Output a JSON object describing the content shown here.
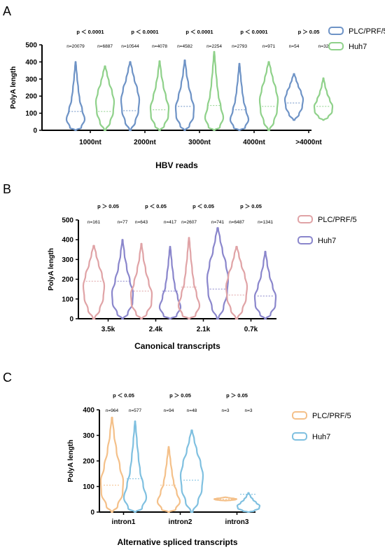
{
  "chart_data": [
    {
      "panel_label": "A",
      "type": "violin",
      "xlabel": "HBV  reads",
      "ylabel": "PolyA length",
      "ylim": [
        0,
        500
      ],
      "yticks": [
        0,
        100,
        200,
        300,
        400,
        500
      ],
      "colors": [
        "#6e93c6",
        "#8fd18a"
      ],
      "legend_position": "top-right",
      "series": [
        {
          "name": "PLC/PRF/5",
          "max": [
            400,
            400,
            410,
            390,
            330
          ],
          "median": [
            110,
            115,
            140,
            120,
            160
          ],
          "min": [
            0,
            0,
            0,
            0,
            60
          ]
        },
        {
          "name": "Huh7",
          "max": [
            375,
            405,
            460,
            400,
            305
          ],
          "median": [
            110,
            120,
            145,
            140,
            140
          ],
          "min": [
            0,
            0,
            0,
            0,
            60
          ]
        }
      ],
      "groups": [
        {
          "category": "1000nt",
          "p": "p ＜ 0.0001",
          "n": [
            "n=20079",
            "n=6887"
          ]
        },
        {
          "category": "2000nt",
          "p": "p ＜ 0.0001",
          "n": [
            "n=10544",
            "n=4078"
          ]
        },
        {
          "category": "3000nt",
          "p": "p ＜ 0.0001",
          "n": [
            "n=4582",
            "n=2254"
          ]
        },
        {
          "category": "4000nt",
          "p": "p ＜ 0.0001",
          "n": [
            "n=2793",
            "n=971"
          ]
        },
        {
          "category": ">4000nt",
          "p": "p ＞ 0.05",
          "n": [
            "n=54",
            "n=32"
          ]
        }
      ]
    },
    {
      "panel_label": "B",
      "type": "violin",
      "xlabel": "Canonical transcripts",
      "ylabel": "PolyA length",
      "ylim": [
        0,
        500
      ],
      "yticks": [
        0,
        100,
        200,
        300,
        400,
        500
      ],
      "colors": [
        "#e0a3a6",
        "#8a86cc"
      ],
      "legend_position": "top-right",
      "series": [
        {
          "name": "PLC/PRF/5",
          "max": [
            370,
            380,
            410,
            365
          ],
          "median": [
            190,
            140,
            160,
            120
          ],
          "min": [
            0,
            0,
            0,
            0
          ]
        },
        {
          "name": "Huh7",
          "max": [
            400,
            365,
            460,
            340
          ],
          "median": [
            190,
            140,
            150,
            115
          ],
          "min": [
            0,
            0,
            0,
            0
          ]
        }
      ],
      "groups": [
        {
          "category": "3.5k",
          "p": "p ＞ 0.05",
          "n": [
            "n=161",
            "n=77"
          ]
        },
        {
          "category": "2.4k",
          "p": "p ＜ 0.05",
          "n": [
            "n=643",
            "n=417"
          ]
        },
        {
          "category": "2.1k",
          "p": "p ＜ 0.05",
          "n": [
            "n=2607",
            "n=741"
          ]
        },
        {
          "category": "0.7k",
          "p": "p ＞ 0.05",
          "n": [
            "n=6487",
            "n=1341"
          ]
        }
      ]
    },
    {
      "panel_label": "C",
      "type": "violin",
      "xlabel": "Alternative spliced transcripts",
      "ylabel": "PolyA length",
      "ylim": [
        0,
        400
      ],
      "yticks": [
        0,
        100,
        200,
        300,
        400
      ],
      "colors": [
        "#f4c089",
        "#7fc0e0"
      ],
      "legend_position": "top-right",
      "series": [
        {
          "name": "PLC/PRF/5",
          "max": [
            370,
            255,
            58
          ],
          "median": [
            105,
            105,
            50
          ],
          "min": [
            0,
            0,
            45
          ]
        },
        {
          "name": "Huh7",
          "max": [
            355,
            320,
            75
          ],
          "median": [
            130,
            125,
            70
          ],
          "min": [
            0,
            0,
            0
          ]
        }
      ],
      "groups": [
        {
          "category": "intron1",
          "p": "p ＜ 0.05",
          "n": [
            "n=964",
            "n=577"
          ]
        },
        {
          "category": "intron2",
          "p": "p ＞ 0.05",
          "n": [
            "n=94",
            "n=48"
          ]
        },
        {
          "category": "intron3",
          "p": "p ＞ 0.05",
          "n": [
            "n=3",
            "n=3"
          ]
        }
      ]
    }
  ]
}
